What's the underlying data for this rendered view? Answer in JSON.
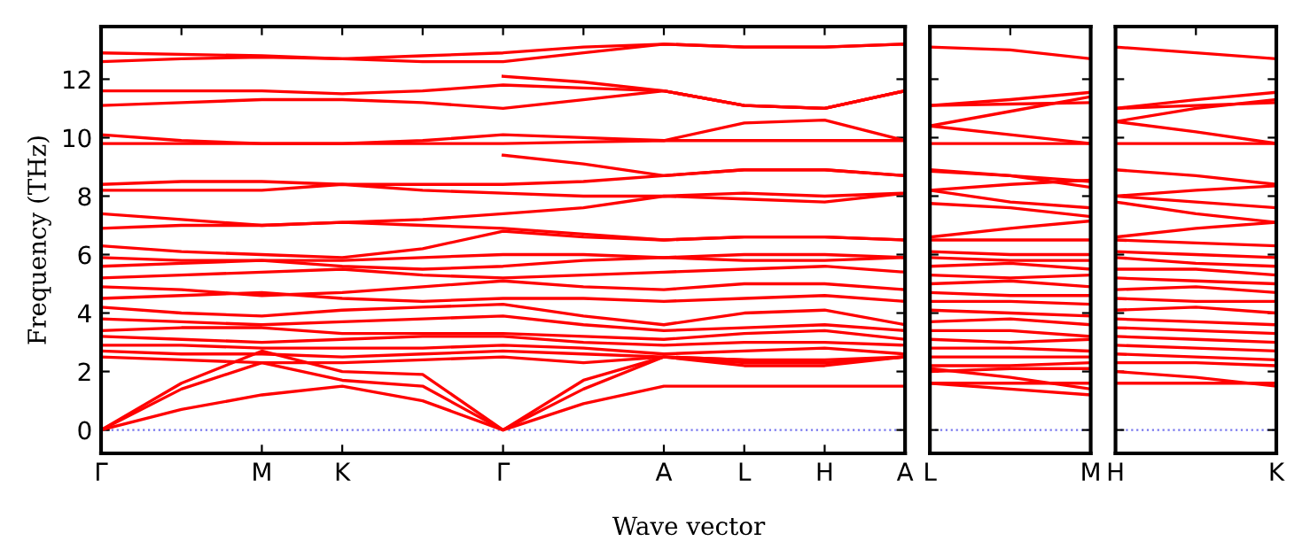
{
  "chart_data": [
    {
      "type": "line",
      "ylabel": "Frequency (THz)",
      "xlabel": "Wave vector",
      "categories": [
        "Γ",
        null,
        "M",
        "K",
        null,
        "Γ",
        null,
        "A",
        "L",
        "H",
        "A"
      ],
      "ylim": [
        -0.8,
        13.8
      ],
      "yticks": [
        0,
        2,
        4,
        6,
        8,
        10,
        12
      ],
      "marker": "none",
      "line_style": "solid",
      "grid": false,
      "legend": false,
      "ref_lines": [
        {
          "axis": "y",
          "value": 0,
          "color": "#7777ee",
          "line_style": "dotted"
        }
      ],
      "series": [
        {
          "color": "#ff0000",
          "values": [
            12.9,
            12.85,
            12.8,
            12.7,
            12.8,
            12.9,
            13.1,
            13.2,
            13.1,
            13.1,
            13.2
          ]
        },
        {
          "color": "#ff0000",
          "values": [
            12.6,
            12.7,
            12.75,
            12.7,
            12.6,
            12.6,
            12.9,
            13.2,
            13.1,
            13.1,
            13.2
          ]
        },
        {
          "color": "#ff0000",
          "values": [
            11.6,
            11.6,
            11.6,
            11.5,
            11.6,
            11.8,
            11.7,
            11.6,
            11.1,
            11.0,
            11.6
          ]
        },
        {
          "color": "#ff0000",
          "values": [
            11.1,
            11.2,
            11.3,
            11.3,
            11.2,
            11.0,
            11.3,
            11.6,
            11.1,
            11.0,
            11.6
          ]
        },
        {
          "color": "#ff0000",
          "values": [
            null,
            null,
            null,
            null,
            null,
            12.1,
            11.9,
            11.6,
            11.1,
            11.0,
            11.6
          ]
        },
        {
          "color": "#ff0000",
          "values": [
            10.1,
            9.9,
            9.8,
            9.8,
            9.9,
            10.1,
            10.0,
            9.9,
            10.5,
            10.6,
            9.9
          ]
        },
        {
          "color": "#ff0000",
          "values": [
            9.8,
            9.8,
            9.8,
            9.8,
            9.8,
            9.8,
            9.85,
            9.9,
            9.9,
            9.9,
            9.9
          ]
        },
        {
          "color": "#ff0000",
          "values": [
            8.4,
            8.5,
            8.5,
            8.4,
            8.4,
            8.4,
            8.5,
            8.7,
            8.9,
            8.9,
            8.7
          ]
        },
        {
          "color": "#ff0000",
          "values": [
            8.2,
            8.2,
            8.2,
            8.4,
            8.2,
            8.1,
            8.0,
            8.0,
            8.1,
            8.0,
            8.1
          ]
        },
        {
          "color": "#ff0000",
          "values": [
            null,
            null,
            null,
            null,
            null,
            9.4,
            9.1,
            8.7,
            8.9,
            8.9,
            8.7
          ]
        },
        {
          "color": "#ff0000",
          "values": [
            7.4,
            7.2,
            7.0,
            7.1,
            7.2,
            7.4,
            7.6,
            8.0,
            7.9,
            7.8,
            8.1
          ]
        },
        {
          "color": "#ff0000",
          "values": [
            6.9,
            7.0,
            7.0,
            7.1,
            7.0,
            6.9,
            6.7,
            6.5,
            6.6,
            6.6,
            6.5
          ]
        },
        {
          "color": "#ff0000",
          "values": [
            6.3,
            6.1,
            6.0,
            5.9,
            6.2,
            6.8,
            6.6,
            6.5,
            6.6,
            6.6,
            6.5
          ]
        },
        {
          "color": "#ff0000",
          "values": [
            5.9,
            5.8,
            5.8,
            5.8,
            5.9,
            6.0,
            6.0,
            5.9,
            6.0,
            6.0,
            5.9
          ]
        },
        {
          "color": "#ff0000",
          "values": [
            5.6,
            5.7,
            5.8,
            5.6,
            5.5,
            5.6,
            5.8,
            5.9,
            5.8,
            5.8,
            5.9
          ]
        },
        {
          "color": "#ff0000",
          "values": [
            5.2,
            5.3,
            5.4,
            5.5,
            5.3,
            5.2,
            5.3,
            5.4,
            5.5,
            5.6,
            5.4
          ]
        },
        {
          "color": "#ff0000",
          "values": [
            4.9,
            4.8,
            4.6,
            4.7,
            4.9,
            5.1,
            4.9,
            4.8,
            5.0,
            5.0,
            4.8
          ]
        },
        {
          "color": "#ff0000",
          "values": [
            4.5,
            4.6,
            4.7,
            4.5,
            4.4,
            4.5,
            4.5,
            4.4,
            4.5,
            4.6,
            4.4
          ]
        },
        {
          "color": "#ff0000",
          "values": [
            4.2,
            4.0,
            3.9,
            4.1,
            4.2,
            4.3,
            3.9,
            3.6,
            4.0,
            4.1,
            3.6
          ]
        },
        {
          "color": "#ff0000",
          "values": [
            3.8,
            3.7,
            3.6,
            3.7,
            3.8,
            3.9,
            3.6,
            3.4,
            3.5,
            3.6,
            3.4
          ]
        },
        {
          "color": "#ff0000",
          "values": [
            3.4,
            3.5,
            3.5,
            3.3,
            3.3,
            3.3,
            3.2,
            3.1,
            3.3,
            3.4,
            3.1
          ]
        },
        {
          "color": "#ff0000",
          "values": [
            3.2,
            3.1,
            3.0,
            3.1,
            3.2,
            3.2,
            3.0,
            2.9,
            3.0,
            3.0,
            2.9
          ]
        },
        {
          "color": "#ff0000",
          "values": [
            2.9,
            2.9,
            2.8,
            2.8,
            2.8,
            2.9,
            2.8,
            2.6,
            2.7,
            2.8,
            2.6
          ]
        },
        {
          "color": "#ff0000",
          "values": [
            2.7,
            2.6,
            2.6,
            2.5,
            2.6,
            2.7,
            2.6,
            2.5,
            2.4,
            2.3,
            2.5
          ]
        },
        {
          "color": "#ff0000",
          "values": [
            2.5,
            2.4,
            2.3,
            2.3,
            2.4,
            2.5,
            2.3,
            2.5,
            2.2,
            2.2,
            2.5
          ]
        },
        {
          "color": "#ff0000",
          "values": [
            0,
            0.7,
            1.2,
            1.5,
            1.0,
            0,
            0.9,
            1.5,
            1.5,
            1.5,
            1.5
          ]
        },
        {
          "color": "#ff0000",
          "values": [
            0,
            1.4,
            2.3,
            1.7,
            1.5,
            0,
            1.4,
            2.5,
            2.3,
            2.3,
            2.5
          ]
        },
        {
          "color": "#ff0000",
          "values": [
            0,
            1.6,
            2.7,
            2.0,
            1.9,
            0,
            1.7,
            2.5,
            2.4,
            2.4,
            2.5
          ]
        }
      ]
    },
    {
      "type": "line",
      "categories": [
        "L",
        null,
        "M"
      ],
      "ylim": [
        -0.8,
        13.8
      ],
      "yticks": [
        0,
        2,
        4,
        6,
        8,
        10,
        12
      ],
      "tick_labels": "x",
      "marker": "none",
      "line_style": "solid",
      "grid": false,
      "legend": false,
      "ref_lines": [
        {
          "axis": "y",
          "value": 0,
          "color": "#7777ee",
          "line_style": "dotted"
        }
      ],
      "series": [
        {
          "color": "#ff0000",
          "values": [
            13.1,
            13.0,
            12.7
          ]
        },
        {
          "color": "#ff0000",
          "values": [
            11.1,
            11.3,
            11.55
          ]
        },
        {
          "color": "#ff0000",
          "values": [
            11.1,
            11.15,
            11.2
          ]
        },
        {
          "color": "#ff0000",
          "values": [
            10.4,
            10.9,
            11.4
          ]
        },
        {
          "color": "#ff0000",
          "values": [
            10.4,
            10.1,
            9.8
          ]
        },
        {
          "color": "#ff0000",
          "values": [
            9.8,
            9.8,
            9.8
          ]
        },
        {
          "color": "#ff0000",
          "values": [
            8.9,
            8.7,
            8.3
          ]
        },
        {
          "color": "#ff0000",
          "values": [
            8.85,
            8.7,
            8.5
          ]
        },
        {
          "color": "#ff0000",
          "values": [
            8.2,
            8.4,
            8.55
          ]
        },
        {
          "color": "#ff0000",
          "values": [
            7.75,
            7.6,
            7.3
          ]
        },
        {
          "color": "#ff0000",
          "values": [
            8.2,
            7.8,
            7.6
          ]
        },
        {
          "color": "#ff0000",
          "values": [
            6.6,
            6.9,
            7.15
          ]
        },
        {
          "color": "#ff0000",
          "values": [
            6.5,
            6.5,
            6.5
          ]
        },
        {
          "color": "#ff0000",
          "values": [
            6.1,
            6.0,
            6.0
          ]
        },
        {
          "color": "#ff0000",
          "values": [
            5.9,
            5.8,
            5.8
          ]
        },
        {
          "color": "#ff0000",
          "values": [
            5.6,
            5.7,
            5.5
          ]
        },
        {
          "color": "#ff0000",
          "values": [
            5.3,
            5.2,
            5.3
          ]
        },
        {
          "color": "#ff0000",
          "values": [
            5.0,
            5.1,
            4.9
          ]
        },
        {
          "color": "#ff0000",
          "values": [
            4.7,
            4.6,
            4.6
          ]
        },
        {
          "color": "#ff0000",
          "values": [
            4.4,
            4.4,
            4.3
          ]
        },
        {
          "color": "#ff0000",
          "values": [
            4.1,
            4.0,
            3.9
          ]
        },
        {
          "color": "#ff0000",
          "values": [
            3.7,
            3.8,
            3.6
          ]
        },
        {
          "color": "#ff0000",
          "values": [
            3.4,
            3.4,
            3.2
          ]
        },
        {
          "color": "#ff0000",
          "values": [
            3.1,
            3.0,
            3.1
          ]
        },
        {
          "color": "#ff0000",
          "values": [
            2.8,
            2.8,
            2.7
          ]
        },
        {
          "color": "#ff0000",
          "values": [
            2.5,
            2.5,
            2.5
          ]
        },
        {
          "color": "#ff0000",
          "values": [
            2.2,
            2.2,
            2.3
          ]
        },
        {
          "color": "#ff0000",
          "values": [
            2.0,
            2.1,
            2.1
          ]
        },
        {
          "color": "#ff0000",
          "values": [
            1.6,
            1.4,
            1.2
          ]
        },
        {
          "color": "#ff0000",
          "values": [
            2.1,
            1.8,
            1.4
          ]
        },
        {
          "color": "#ff0000",
          "values": [
            1.6,
            1.6,
            1.6
          ]
        }
      ]
    },
    {
      "type": "line",
      "categories": [
        "H",
        null,
        "K"
      ],
      "ylim": [
        -0.8,
        13.8
      ],
      "yticks": [
        0,
        2,
        4,
        6,
        8,
        10,
        12
      ],
      "tick_labels": "x",
      "marker": "none",
      "line_style": "solid",
      "grid": false,
      "legend": false,
      "ref_lines": [
        {
          "axis": "y",
          "value": 0,
          "color": "#7777ee",
          "line_style": "dotted"
        }
      ],
      "series": [
        {
          "color": "#ff0000",
          "values": [
            13.1,
            12.9,
            12.7
          ]
        },
        {
          "color": "#ff0000",
          "values": [
            11.0,
            11.3,
            11.55
          ]
        },
        {
          "color": "#ff0000",
          "values": [
            11.0,
            11.1,
            11.2
          ]
        },
        {
          "color": "#ff0000",
          "values": [
            10.55,
            11.0,
            11.3
          ]
        },
        {
          "color": "#ff0000",
          "values": [
            10.55,
            10.2,
            9.8
          ]
        },
        {
          "color": "#ff0000",
          "values": [
            9.8,
            9.8,
            9.8
          ]
        },
        {
          "color": "#ff0000",
          "values": [
            8.9,
            8.7,
            8.4
          ]
        },
        {
          "color": "#ff0000",
          "values": [
            8.0,
            8.2,
            8.35
          ]
        },
        {
          "color": "#ff0000",
          "values": [
            8.0,
            7.8,
            7.6
          ]
        },
        {
          "color": "#ff0000",
          "values": [
            7.8,
            7.4,
            7.1
          ]
        },
        {
          "color": "#ff0000",
          "values": [
            6.6,
            6.9,
            7.1
          ]
        },
        {
          "color": "#ff0000",
          "values": [
            6.5,
            6.4,
            6.3
          ]
        },
        {
          "color": "#ff0000",
          "values": [
            6.1,
            6.0,
            5.9
          ]
        },
        {
          "color": "#ff0000",
          "values": [
            5.9,
            5.7,
            5.6
          ]
        },
        {
          "color": "#ff0000",
          "values": [
            5.5,
            5.5,
            5.3
          ]
        },
        {
          "color": "#ff0000",
          "values": [
            5.2,
            5.1,
            5.0
          ]
        },
        {
          "color": "#ff0000",
          "values": [
            4.8,
            4.9,
            4.7
          ]
        },
        {
          "color": "#ff0000",
          "values": [
            4.5,
            4.4,
            4.4
          ]
        },
        {
          "color": "#ff0000",
          "values": [
            4.1,
            4.2,
            4.0
          ]
        },
        {
          "color": "#ff0000",
          "values": [
            3.8,
            3.7,
            3.6
          ]
        },
        {
          "color": "#ff0000",
          "values": [
            3.5,
            3.4,
            3.3
          ]
        },
        {
          "color": "#ff0000",
          "values": [
            3.2,
            3.1,
            3.0
          ]
        },
        {
          "color": "#ff0000",
          "values": [
            2.9,
            2.8,
            2.7
          ]
        },
        {
          "color": "#ff0000",
          "values": [
            2.6,
            2.5,
            2.4
          ]
        },
        {
          "color": "#ff0000",
          "values": [
            2.3,
            2.3,
            2.2
          ]
        },
        {
          "color": "#ff0000",
          "values": [
            2.0,
            1.8,
            1.5
          ]
        },
        {
          "color": "#ff0000",
          "values": [
            1.6,
            1.6,
            1.6
          ]
        }
      ]
    }
  ]
}
